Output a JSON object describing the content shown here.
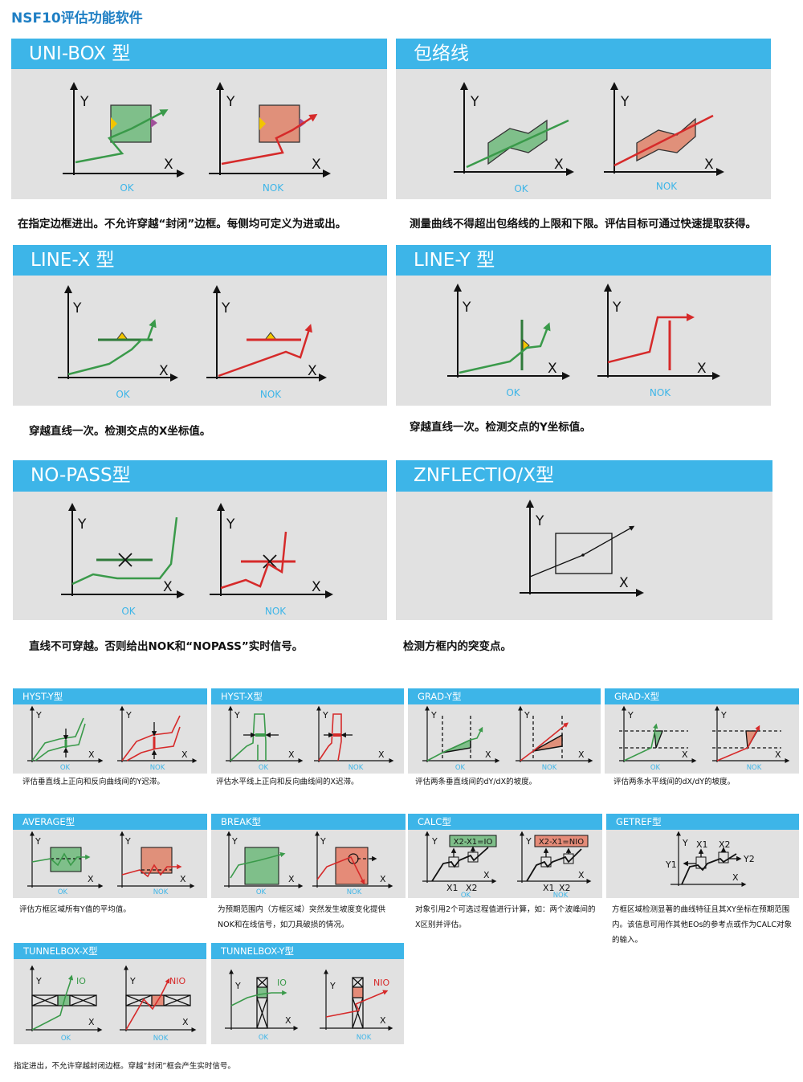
{
  "title": "NSF10评估功能软件",
  "axis": {
    "x": "X",
    "y": "Y"
  },
  "status": {
    "ok": "OK",
    "nok": "NOK",
    "io": "IO",
    "nio": "NIO"
  },
  "colors": {
    "header": "#3db5e8",
    "panel": "#e1e1e1",
    "ok_line": "#3a9a4a",
    "nok_line": "#d62a2a",
    "title": "#1f7fc4"
  },
  "big_panels": [
    {
      "title": "UNI-BOX 型",
      "caption": "在指定边框进出。不允许穿越“封闭”边框。每侧均可定义为进或出。"
    },
    {
      "title": "包络线",
      "caption": "测量曲线不得超出包络线的上限和下限。评估目标可通过快速提取获得。"
    },
    {
      "title": "LINE-X 型",
      "caption": "穿越直线一次。检测交点的X坐标值。"
    },
    {
      "title": "LINE-Y 型",
      "caption": "穿越直线一次。检测交点的Y坐标值。"
    },
    {
      "title": "NO-PASS型",
      "caption": "直线不可穿越。否则给出NOK和“NOPASS”实时信号。"
    },
    {
      "title": "ZNFLECTIO/X型",
      "caption": "检测方框内的突变点。"
    }
  ],
  "small_panels": [
    {
      "title": "HYST-Y型",
      "caption": "评估垂直线上正向和反向曲线间的Y迟滞。"
    },
    {
      "title": "HYST-X型",
      "caption": "评估水平线上正向和反向曲线间的X迟滞。"
    },
    {
      "title": "GRAD-Y型",
      "caption": "评估两条垂直线间的dY/dX的坡度。"
    },
    {
      "title": "GRAD-X型",
      "caption": "评估两条水平线间的dX/dY的坡度。"
    },
    {
      "title": "AVERAGE型",
      "caption": "评估方框区域所有Y值的平均值。"
    },
    {
      "title": "BREAK型",
      "caption": "为预期范围内（方框区域）突然发生坡度变化提供NOK和在线信号，如刀具破损的情况。"
    },
    {
      "title": "CALC型",
      "caption": "对象引用2个可选过程值进行计算，如：两个波峰间的X区别并评估。",
      "ok_formula": "X2-X1=IO",
      "nok_formula": "X2-X1=NIO",
      "x1": "X1",
      "x2": "X2"
    },
    {
      "title": "GETREF型",
      "caption": "方框区域检测显著的曲线特征且其XY坐标在预期范围内。该信息可用作其他EOs的参考点或作为CALC对象的输入。",
      "x1": "X1",
      "x2": "X2",
      "y1": "Y1",
      "y2": "Y2"
    },
    {
      "title": "TUNNELBOX-X型"
    },
    {
      "title": "TUNNELBOX-Y型"
    }
  ],
  "tunnel_caption": "指定进出，不允许穿越封闭边框。穿越“封闭”框会产生实时信号。"
}
